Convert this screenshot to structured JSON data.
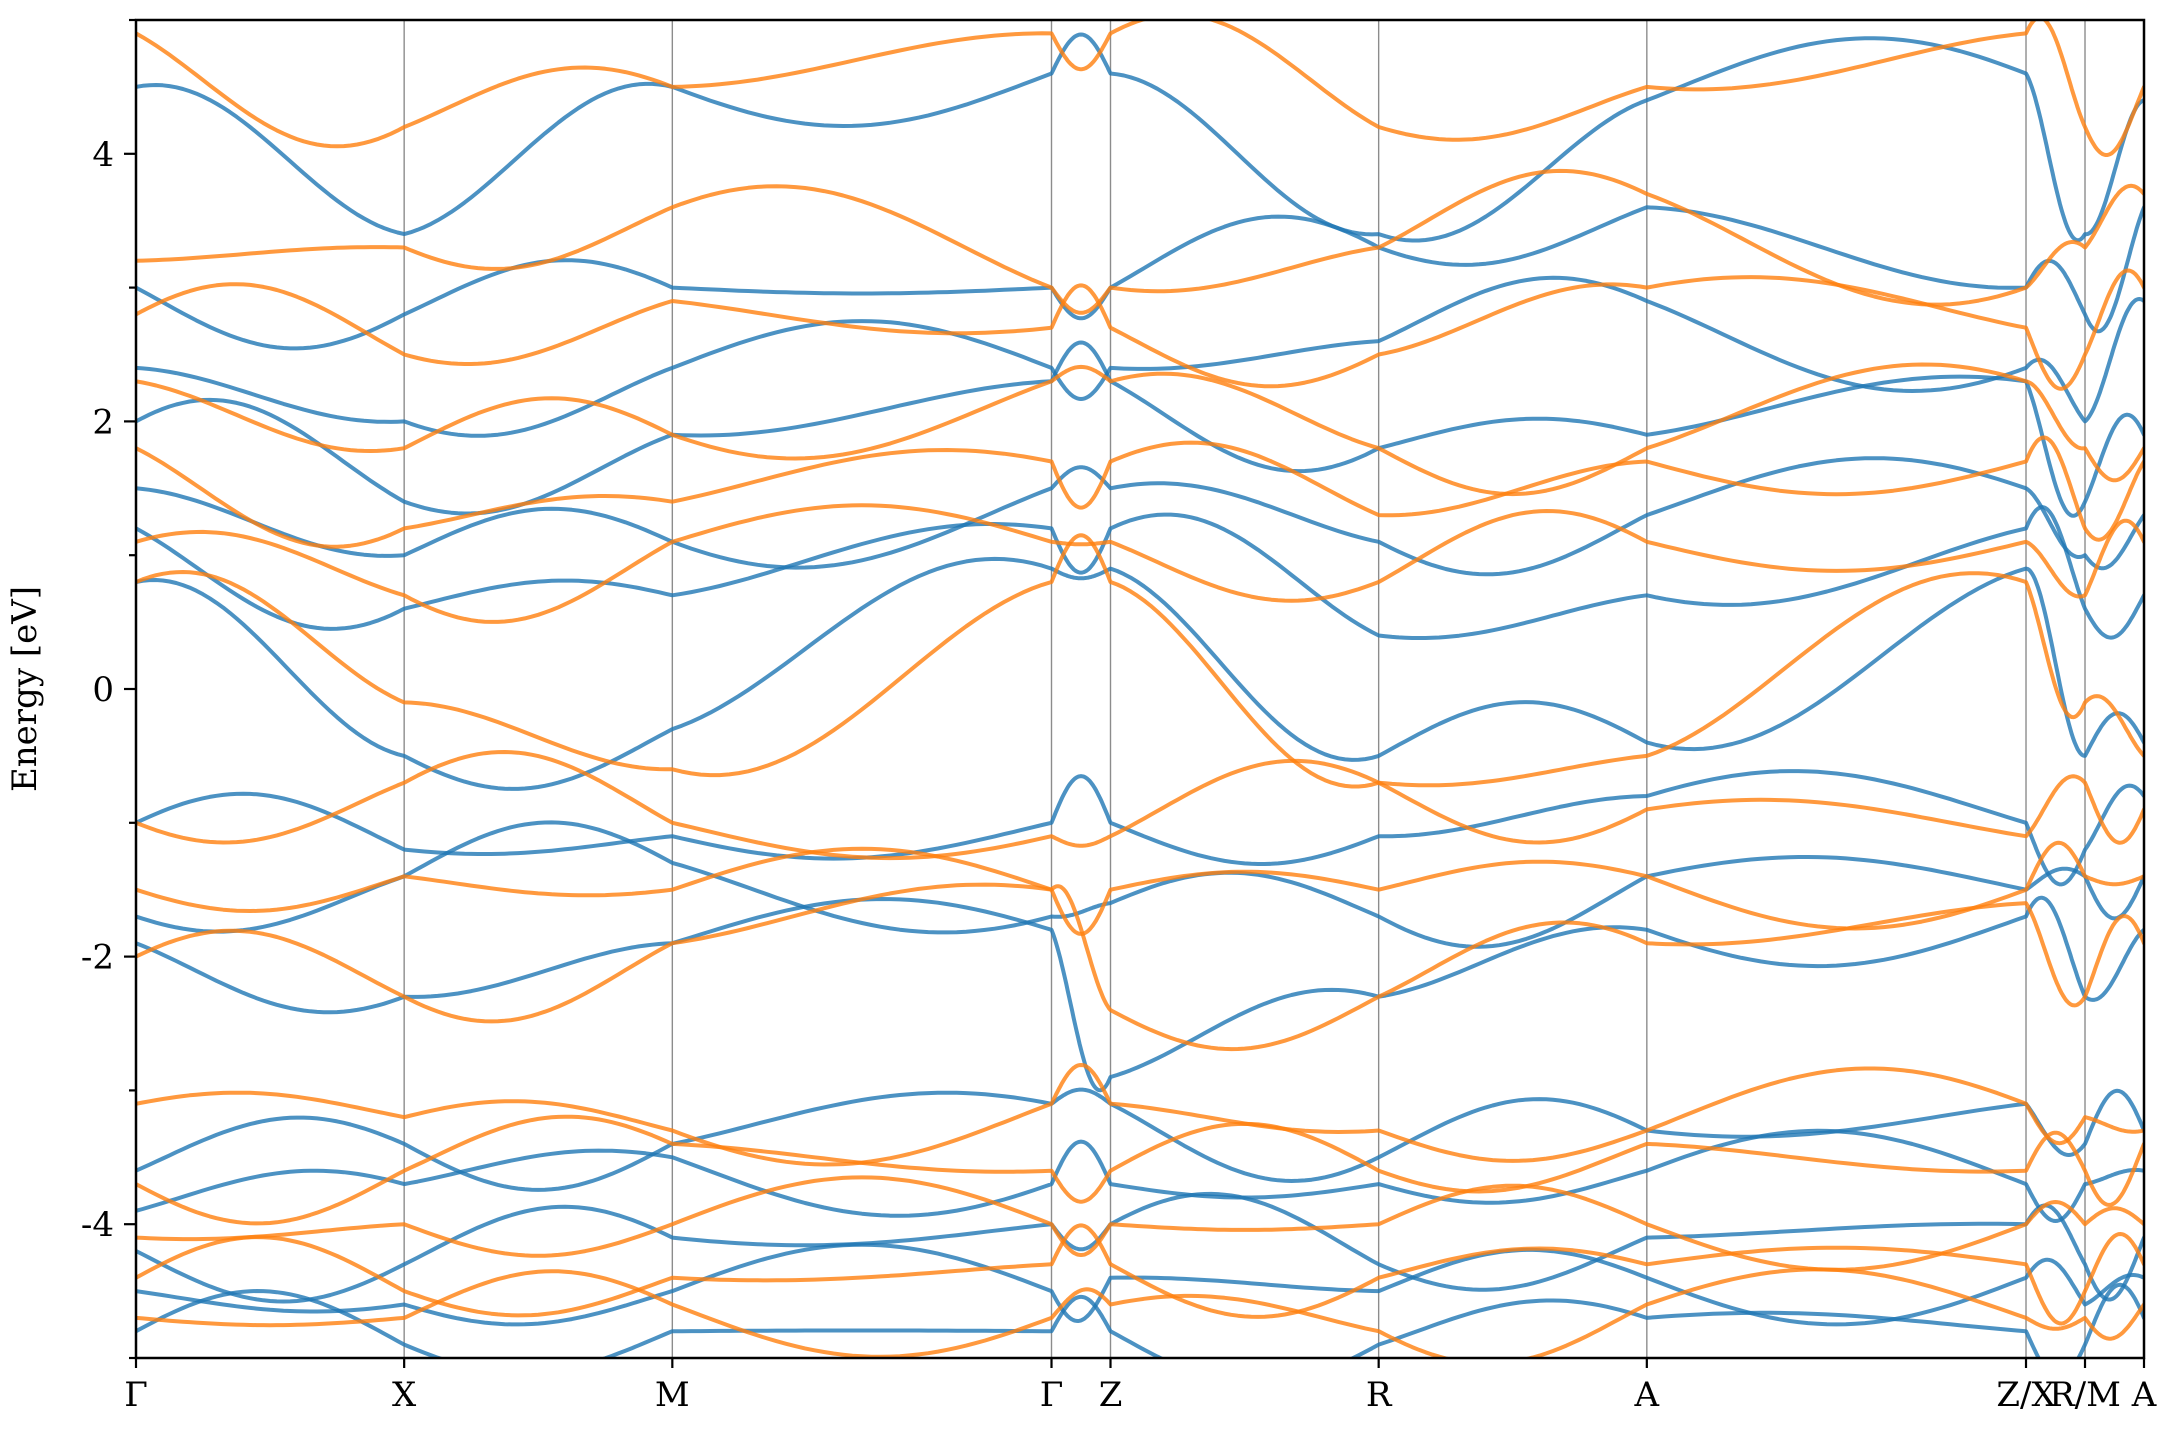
{
  "chart_data": {
    "type": "line",
    "title": "",
    "xlabel": "",
    "ylabel": "Energy [eV]",
    "ylim": [
      -5,
      5
    ],
    "yticks": [
      -4,
      -2,
      0,
      2,
      4
    ],
    "ytick_labels": [
      "-4",
      "-2",
      "0",
      "2",
      "4"
    ],
    "yminor_ticks": [
      -5,
      -3,
      -1,
      1,
      3,
      5
    ],
    "grid": false,
    "legend": "none",
    "kpath": [
      {
        "label": "Γ",
        "pos": 0.0
      },
      {
        "label": "X",
        "pos": 1.0
      },
      {
        "label": "M",
        "pos": 2.0
      },
      {
        "label": "Γ",
        "pos": 3.414
      },
      {
        "label": "Z",
        "pos": 3.634
      },
      {
        "label": "R",
        "pos": 4.634
      },
      {
        "label": "A",
        "pos": 5.634
      },
      {
        "label": "Z/X",
        "pos": 7.048
      },
      {
        "label": "R/M",
        "pos": 7.268
      },
      {
        "label": "A",
        "pos": 7.488
      }
    ],
    "xrange": [
      0.0,
      7.488
    ],
    "colors": {
      "spin_up": "#1f77b4",
      "spin_down": "#ff7f0e"
    },
    "band_energies_at_kpoints": {
      "kpoints": [
        "Γ",
        "X",
        "M",
        "Γ",
        "Z",
        "R",
        "A",
        "Z/X",
        "R/M",
        "A"
      ],
      "spin_up": [
        [
          -4.8,
          -4.9,
          -4.8,
          -4.8,
          -4.8,
          -4.9,
          -4.7,
          -4.8,
          -4.9,
          -4.7
        ],
        [
          -4.5,
          -4.6,
          -4.5,
          -4.5,
          -4.4,
          -4.5,
          -4.4,
          -4.4,
          -4.6,
          -4.4
        ],
        [
          -4.2,
          -4.3,
          -4.1,
          -4.0,
          -4.0,
          -4.3,
          -4.1,
          -4.0,
          -4.3,
          -4.1
        ],
        [
          -3.9,
          -3.7,
          -3.5,
          -3.7,
          -3.7,
          -3.7,
          -3.6,
          -3.7,
          -3.7,
          -3.6
        ],
        [
          -3.6,
          -3.4,
          -3.4,
          -3.1,
          -3.1,
          -3.5,
          -3.3,
          -3.1,
          -3.4,
          -3.3
        ],
        [
          -1.9,
          -2.3,
          -1.9,
          -1.8,
          -2.9,
          -2.3,
          -1.8,
          -1.7,
          -2.3,
          -1.8
        ],
        [
          -1.7,
          -1.4,
          -1.3,
          -1.7,
          -1.6,
          -1.7,
          -1.4,
          -1.5,
          -1.4,
          -1.4
        ],
        [
          -1.0,
          -1.2,
          -1.1,
          -1.0,
          -1.0,
          -1.1,
          -0.8,
          -1.0,
          -1.2,
          -0.8
        ],
        [
          0.8,
          -0.5,
          -0.3,
          0.9,
          0.9,
          -0.5,
          -0.4,
          0.9,
          -0.5,
          -0.4
        ],
        [
          1.2,
          0.6,
          0.7,
          1.2,
          1.2,
          0.4,
          0.7,
          1.2,
          0.6,
          0.7
        ],
        [
          1.5,
          1.0,
          1.1,
          1.5,
          1.5,
          1.1,
          1.3,
          1.5,
          1.0,
          1.3
        ],
        [
          2.0,
          1.4,
          1.9,
          2.3,
          2.3,
          1.8,
          1.9,
          2.3,
          1.4,
          1.9
        ],
        [
          2.4,
          2.0,
          2.4,
          2.4,
          2.4,
          2.6,
          2.9,
          2.4,
          2.0,
          2.9
        ],
        [
          3.0,
          2.8,
          3.0,
          3.0,
          3.0,
          3.3,
          3.6,
          3.0,
          2.8,
          3.6
        ],
        [
          4.5,
          3.4,
          4.5,
          4.6,
          4.6,
          3.4,
          4.4,
          4.6,
          3.4,
          4.4
        ]
      ],
      "spin_down": [
        [
          -4.7,
          -4.7,
          -4.6,
          -4.7,
          -4.6,
          -4.8,
          -4.6,
          -4.7,
          -4.7,
          -4.6
        ],
        [
          -4.4,
          -4.5,
          -4.4,
          -4.3,
          -4.3,
          -4.4,
          -4.3,
          -4.3,
          -4.5,
          -4.3
        ],
        [
          -4.1,
          -4.0,
          -4.0,
          -4.0,
          -4.0,
          -4.0,
          -4.0,
          -4.0,
          -4.0,
          -4.0
        ],
        [
          -3.7,
          -3.6,
          -3.4,
          -3.6,
          -3.6,
          -3.6,
          -3.4,
          -3.6,
          -3.6,
          -3.4
        ],
        [
          -3.1,
          -3.2,
          -3.3,
          -3.1,
          -3.1,
          -3.3,
          -3.3,
          -3.1,
          -3.2,
          -3.3
        ],
        [
          -2.0,
          -2.3,
          -1.9,
          -1.5,
          -2.4,
          -2.3,
          -1.9,
          -1.6,
          -2.3,
          -1.9
        ],
        [
          -1.5,
          -1.4,
          -1.5,
          -1.5,
          -1.5,
          -1.5,
          -1.4,
          -1.5,
          -1.4,
          -1.4
        ],
        [
          -1.0,
          -0.7,
          -1.0,
          -1.1,
          -1.1,
          -0.7,
          -0.9,
          -1.1,
          -0.7,
          -0.9
        ],
        [
          0.8,
          -0.1,
          -0.6,
          0.8,
          0.8,
          -0.7,
          -0.5,
          0.8,
          -0.1,
          -0.5
        ],
        [
          1.1,
          0.7,
          1.1,
          1.1,
          1.1,
          0.8,
          1.1,
          1.1,
          0.7,
          1.1
        ],
        [
          1.8,
          1.2,
          1.4,
          1.7,
          1.7,
          1.3,
          1.7,
          1.7,
          1.2,
          1.7
        ],
        [
          2.3,
          1.8,
          1.9,
          2.3,
          2.3,
          1.8,
          1.8,
          2.3,
          1.8,
          1.8
        ],
        [
          2.8,
          2.5,
          2.9,
          2.7,
          2.7,
          2.5,
          3.0,
          2.7,
          2.5,
          3.0
        ],
        [
          3.2,
          3.3,
          3.6,
          3.0,
          3.0,
          3.3,
          3.7,
          3.0,
          3.3,
          3.7
        ],
        [
          4.9,
          4.2,
          4.5,
          4.9,
          4.9,
          4.2,
          4.5,
          4.9,
          4.2,
          4.5
        ]
      ]
    }
  }
}
